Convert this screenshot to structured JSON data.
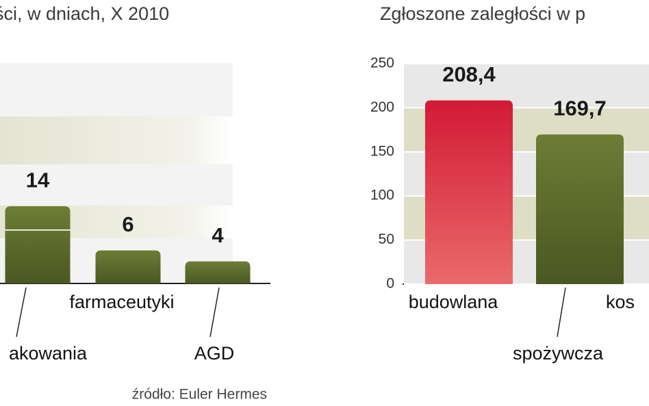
{
  "charts": [
    {
      "chart_data": {
        "type": "bar",
        "title": "ści, w dniach, X 2010",
        "categories": [
          "akowania",
          "farmaceutyki",
          "AGD"
        ],
        "values": [
          14,
          6,
          4
        ],
        "color": "#5b6a2b",
        "source": "źródło: Euler Hermes"
      }
    },
    {
      "chart_data": {
        "type": "bar",
        "title": "Zgłoszone zaległości w p",
        "categories": [
          "budowlana",
          "spożywcza",
          "kos"
        ],
        "values": [
          208.4,
          169.7,
          null
        ],
        "value_labels": [
          "208,4",
          "169,7",
          null
        ],
        "colors": [
          "#d7263d",
          "#5b6a2b",
          null
        ],
        "ylim": [
          0,
          250
        ],
        "yticks": [
          0,
          50,
          100,
          150,
          200,
          250
        ],
        "grid": true
      }
    }
  ]
}
